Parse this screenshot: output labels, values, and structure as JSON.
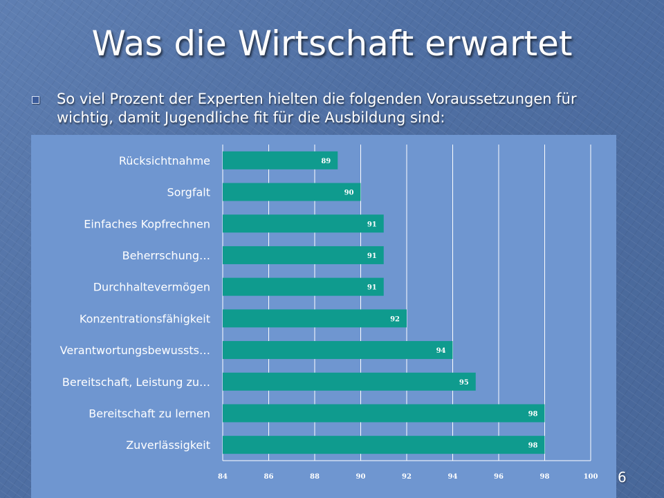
{
  "slide": {
    "title": "Was die Wirtschaft erwartet",
    "bullet": "So viel Prozent der Experten hielten die folgenden Voraussetzungen für wichtig, damit Jugendliche fit für die Ausbildung sind:",
    "page_number": "6"
  },
  "colors": {
    "bar": "#0f9b8e",
    "panel": "#6f96d0",
    "grid": "#ffffff",
    "label_text": "#ffffff",
    "value_text": "#ffffff"
  },
  "chart_data": {
    "type": "bar",
    "orientation": "horizontal",
    "title": "",
    "xlabel": "",
    "ylabel": "",
    "categories": [
      "Rücksichtnahme",
      "Sorgfalt",
      "Einfaches Kopfrechnen",
      "Beherrschung…",
      "Durchhaltevermögen",
      "Konzentrationsfähigkeit",
      "Verantwortungsbewussts…",
      "Bereitschaft, Leistung zu…",
      "Bereitschaft zu lernen",
      "Zuverlässigkeit"
    ],
    "values": [
      89,
      90,
      91,
      91,
      91,
      92,
      94,
      95,
      98,
      98
    ],
    "xlim": [
      84,
      100
    ],
    "xticks": [
      "84",
      "86",
      "88",
      "90",
      "92",
      "94",
      "96",
      "98",
      "100"
    ],
    "grid": true,
    "data_labels": true,
    "legend": "none"
  }
}
